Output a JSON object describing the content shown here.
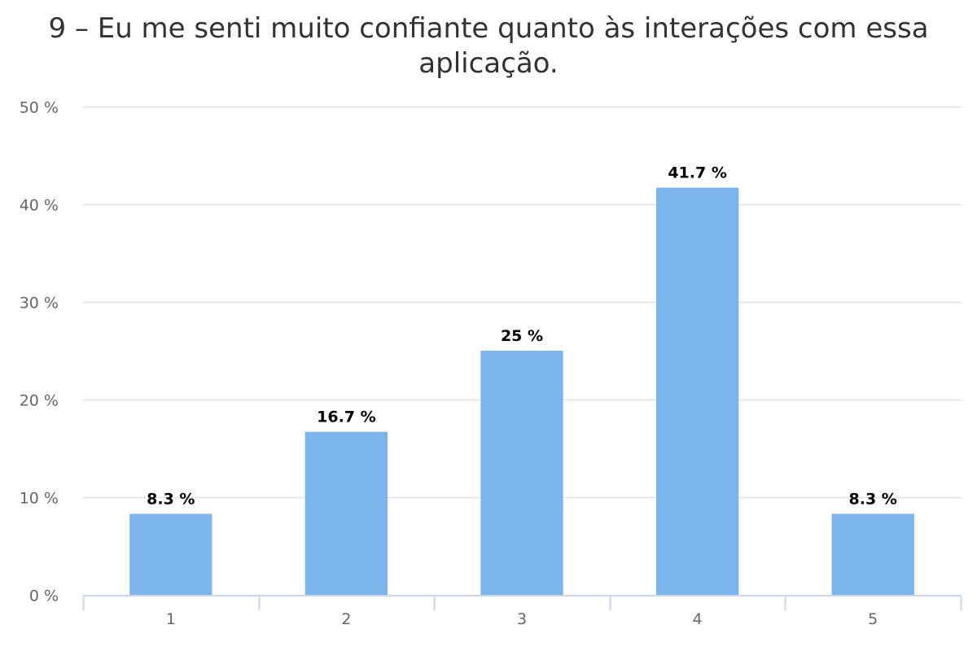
{
  "chart_data": {
    "type": "bar",
    "title": "9 – Eu me senti muito confiante quanto às interações com essa aplicação.",
    "categories": [
      "1",
      "2",
      "3",
      "4",
      "5"
    ],
    "values": [
      8.3,
      16.7,
      25,
      41.7,
      8.3
    ],
    "data_labels": [
      "8.3 %",
      "16.7 %",
      "25 %",
      "41.7 %",
      "8.3 %"
    ],
    "y_ticks": [
      0,
      10,
      20,
      30,
      40,
      50
    ],
    "y_tick_labels": [
      "0 %",
      "10 %",
      "20 %",
      "30 %",
      "40 %",
      "50 %"
    ],
    "ylim": [
      0,
      50
    ],
    "xlabel": "",
    "ylabel": "",
    "grid": true,
    "legend": "none",
    "bar_color": "#7cb5ec",
    "grid_color": "#e6e6e6",
    "axis_color": "#ccd6eb"
  }
}
